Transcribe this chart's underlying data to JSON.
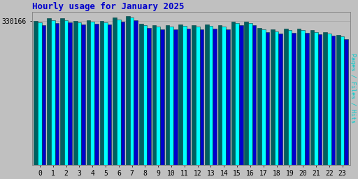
{
  "title": "Hourly usage for January 2025",
  "ylabel": "330166",
  "right_ylabel": "Pages / Files / Hits",
  "hours": [
    0,
    1,
    2,
    3,
    4,
    5,
    6,
    7,
    8,
    9,
    10,
    11,
    12,
    13,
    14,
    15,
    16,
    17,
    18,
    19,
    20,
    21,
    22,
    23
  ],
  "hits": [
    0.97,
    0.985,
    0.985,
    0.97,
    0.975,
    0.97,
    0.99,
    1.0,
    0.95,
    0.94,
    0.94,
    0.945,
    0.94,
    0.945,
    0.94,
    0.965,
    0.965,
    0.92,
    0.91,
    0.915,
    0.915,
    0.905,
    0.895,
    0.875
  ],
  "files": [
    0.96,
    0.975,
    0.975,
    0.96,
    0.965,
    0.96,
    0.98,
    0.99,
    0.94,
    0.93,
    0.93,
    0.935,
    0.93,
    0.935,
    0.93,
    0.955,
    0.955,
    0.91,
    0.9,
    0.905,
    0.905,
    0.895,
    0.885,
    0.865
  ],
  "pages": [
    0.94,
    0.955,
    0.96,
    0.945,
    0.948,
    0.943,
    0.963,
    0.973,
    0.923,
    0.913,
    0.913,
    0.918,
    0.913,
    0.918,
    0.913,
    0.938,
    0.938,
    0.893,
    0.883,
    0.888,
    0.888,
    0.878,
    0.868,
    0.848
  ],
  "color_hits": "#006060",
  "color_files": "#00ffff",
  "color_pages": "#0000cc",
  "bar_edge": "#004040",
  "bg_color": "#c0c0c0",
  "title_color": "#0000cc",
  "right_label_color": "#00cccc",
  "ylim": [
    0,
    1.03
  ],
  "title_fontsize": 9,
  "tick_fontsize": 7
}
